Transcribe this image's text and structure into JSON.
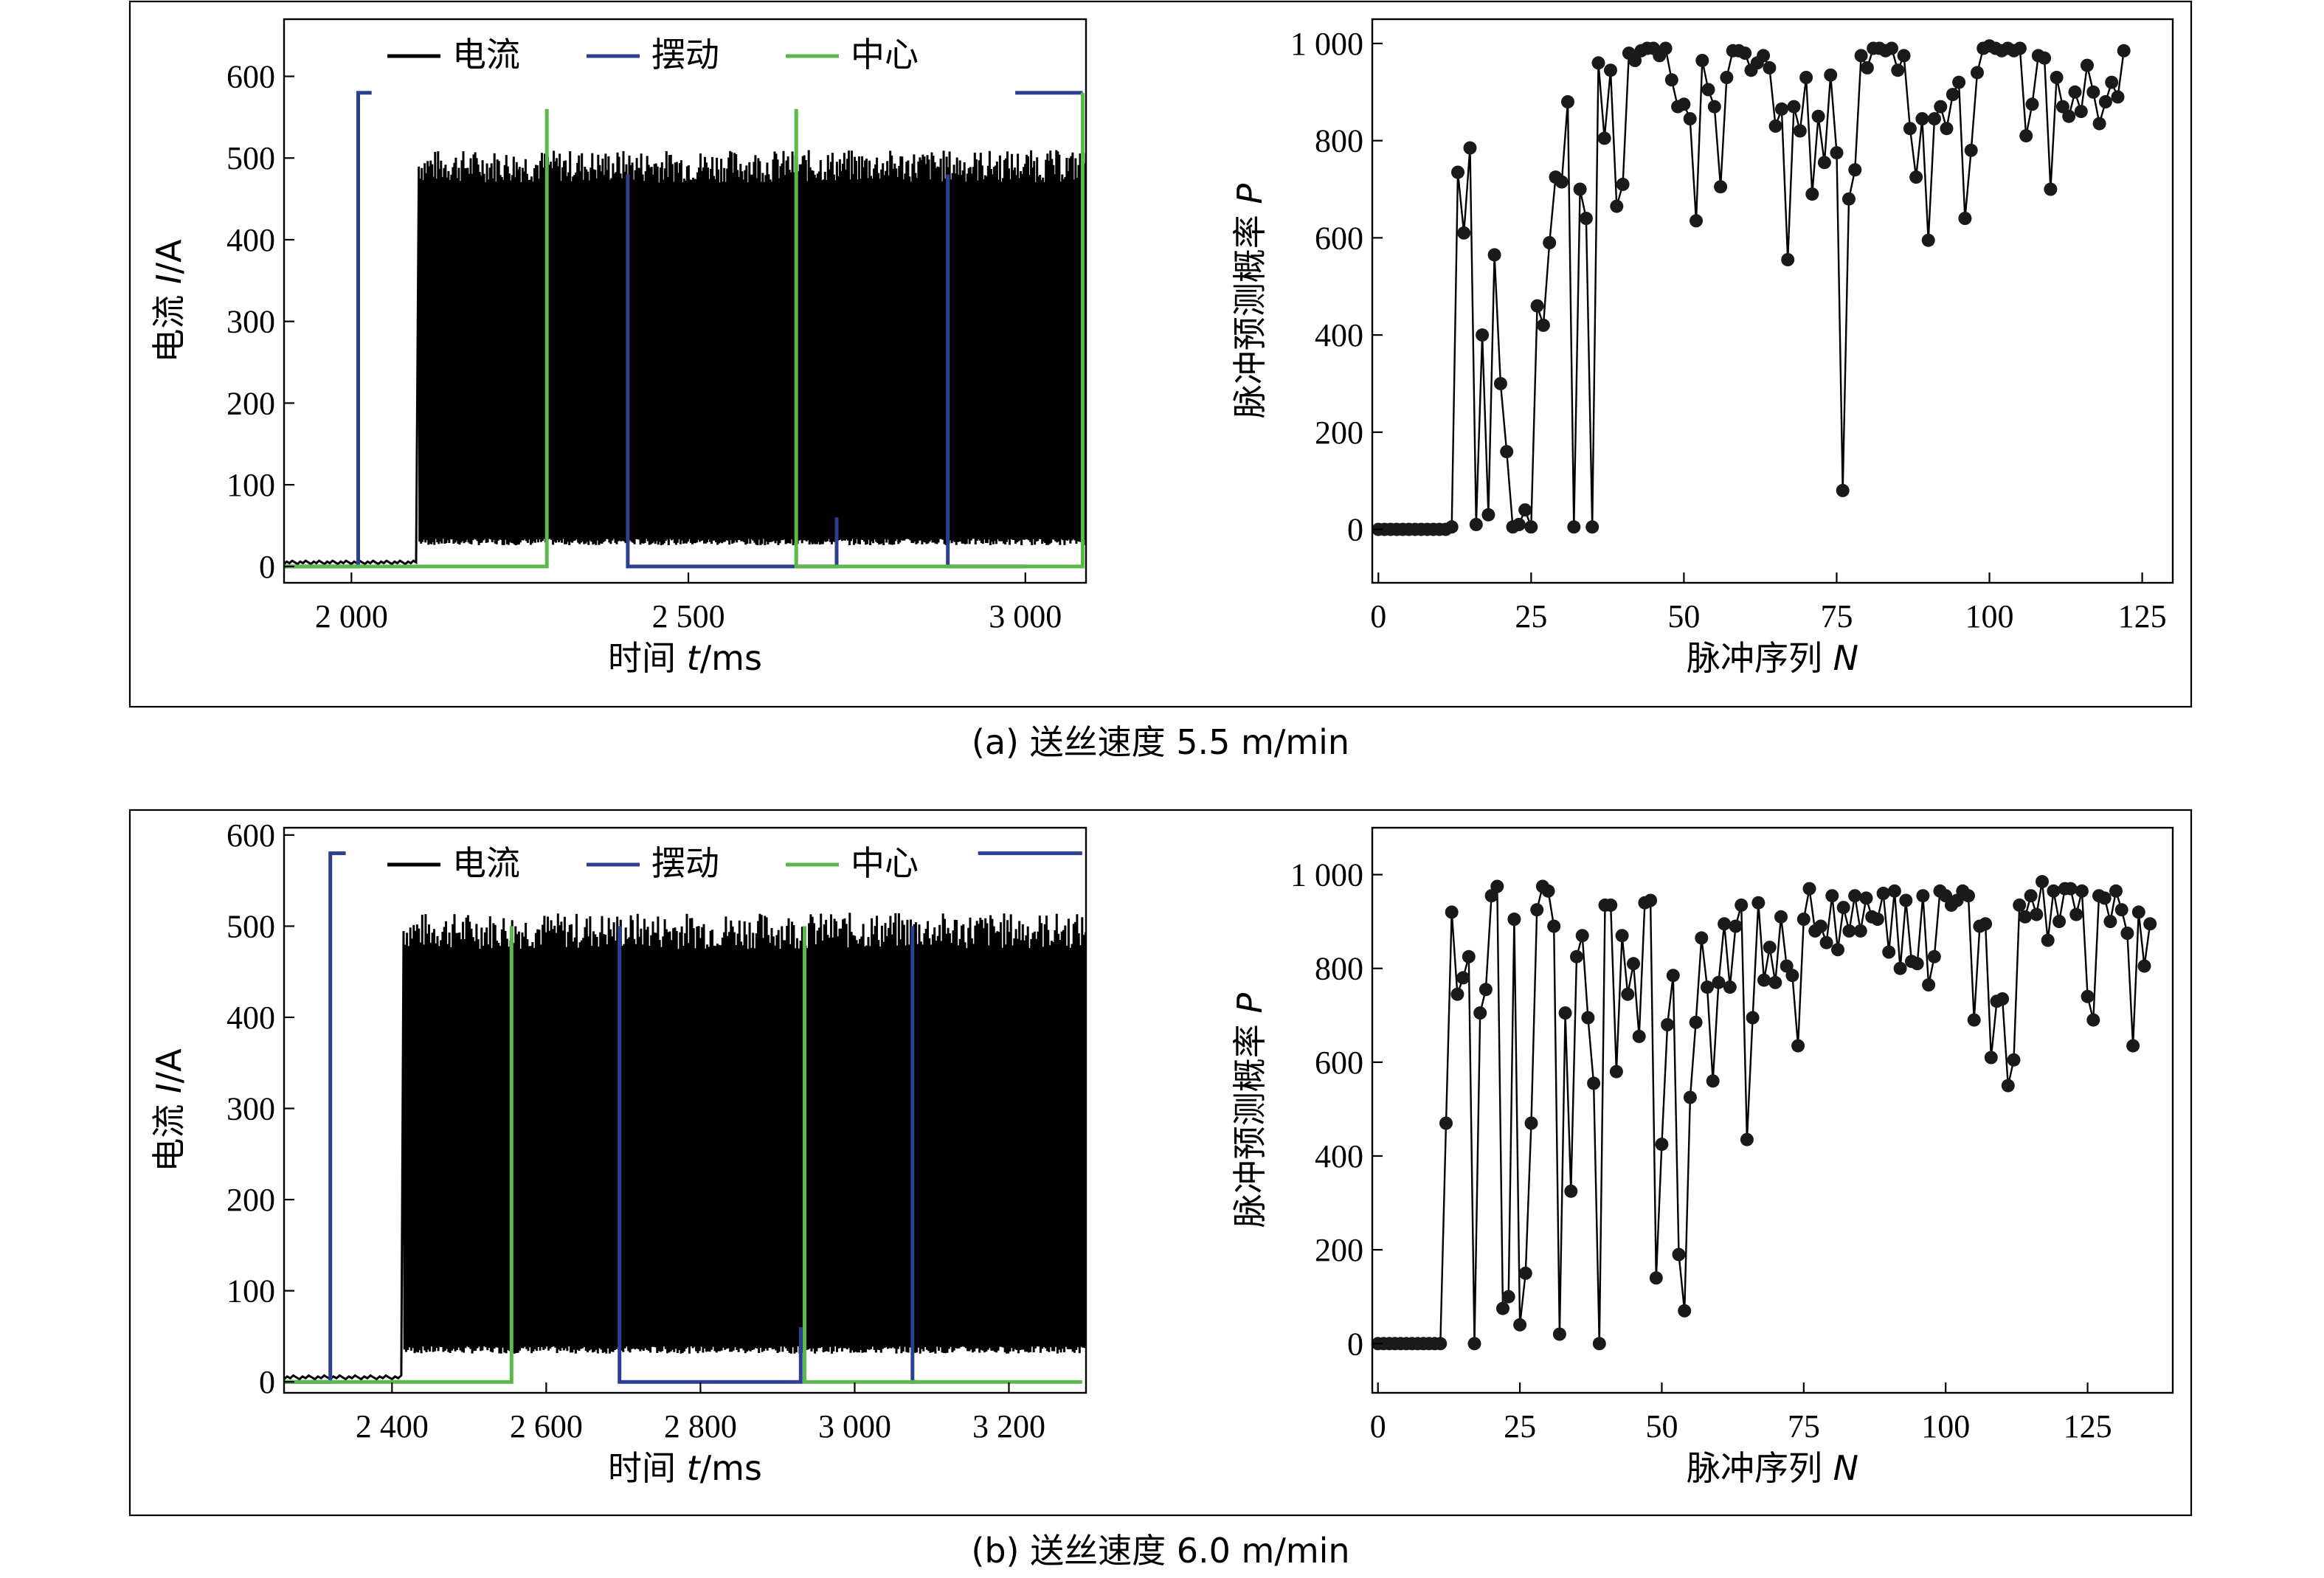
{
  "colors": {
    "current": "#000000",
    "swing": "#2e3f93",
    "center": "#5bb84a",
    "marker": "#1a1a1a"
  },
  "panels": [
    {
      "caption": "(a) 送丝速度 5.5 m/min",
      "left_chart": {
        "type": "line",
        "xlabel_prefix": "时间 ",
        "xlabel_var": "t",
        "xlabel_suffix": "/ms",
        "ylabel_prefix": "电流 ",
        "ylabel_var": "I",
        "ylabel_suffix": "/A",
        "xlim": [
          1900,
          3090
        ],
        "ylim": [
          -20,
          670
        ],
        "xticks": [
          2000,
          2500,
          3000
        ],
        "xtick_labels": [
          "2 000",
          "2 500",
          "3 000"
        ],
        "yticks": [
          0,
          100,
          200,
          300,
          400,
          500,
          600
        ],
        "ytick_labels": [
          "0",
          "100",
          "200",
          "300",
          "400",
          "500",
          "600"
        ],
        "legend": [
          "电流",
          "摆动",
          "中心"
        ],
        "current_start": 2100,
        "current_end": 3090,
        "current_low": 30,
        "current_high": 490,
        "swing_segments": [
          [
            [
              1900,
              0
            ],
            [
              2010,
              0
            ],
            [
              2010,
              580
            ],
            [
              2030,
              580
            ]
          ],
          [
            [
              2410,
              480
            ],
            [
              2410,
              0
            ],
            [
              2720,
              0
            ],
            [
              2720,
              60
            ]
          ],
          [
            [
              2885,
              480
            ],
            [
              2885,
              0
            ],
            [
              3000,
              0
            ]
          ],
          [
            [
              2985,
              580
            ],
            [
              3085,
              580
            ]
          ]
        ],
        "center_segments": [
          [
            [
              1900,
              0
            ],
            [
              2290,
              0
            ],
            [
              2290,
              560
            ]
          ],
          [
            [
              2660,
              560
            ],
            [
              2660,
              0
            ],
            [
              3085,
              0
            ],
            [
              3085,
              580
            ]
          ]
        ]
      },
      "right_chart": {
        "type": "line",
        "xlabel_prefix": "脉冲序列 ",
        "xlabel_var": "N",
        "ylabel_prefix": "脉冲预测概率 ",
        "ylabel_var": "P",
        "xlim": [
          -1,
          130
        ],
        "ylim": [
          -110,
          1050
        ],
        "xticks": [
          0,
          25,
          50,
          75,
          100,
          125
        ],
        "xtick_labels": [
          "0",
          "25",
          "50",
          "75",
          "100",
          "125"
        ],
        "yticks": [
          0,
          200,
          400,
          600,
          800,
          1000
        ],
        "ytick_labels": [
          "0",
          "200",
          "400",
          "600",
          "800",
          "1 000"
        ],
        "values": [
          0,
          0,
          0,
          0,
          0,
          0,
          0,
          0,
          0,
          0,
          0,
          0,
          5,
          735,
          610,
          785,
          10,
          400,
          30,
          565,
          300,
          160,
          5,
          10,
          40,
          5,
          460,
          420,
          590,
          725,
          715,
          880,
          5,
          700,
          640,
          5,
          960,
          805,
          945,
          665,
          710,
          980,
          965,
          985,
          990,
          990,
          975,
          990,
          925,
          870,
          875,
          845,
          635,
          965,
          905,
          870,
          705,
          930,
          985,
          985,
          980,
          945,
          960,
          975,
          950,
          830,
          865,
          555,
          870,
          820,
          930,
          690,
          850,
          755,
          935,
          775,
          80,
          680,
          740,
          975,
          950,
          990,
          990,
          985,
          990,
          945,
          975,
          825,
          725,
          845,
          595,
          845,
          870,
          825,
          895,
          920,
          640,
          780,
          940,
          990,
          995,
          990,
          985,
          990,
          985,
          990,
          810,
          875,
          975,
          970,
          700,
          930,
          870,
          850,
          900,
          860,
          955,
          900,
          835,
          880,
          920,
          890,
          985
        ],
        "xs_first": 0
      }
    },
    {
      "caption": "(b) 送丝速度 6.0 m/min",
      "left_chart": {
        "type": "line",
        "xlabel_prefix": "时间 ",
        "xlabel_var": "t",
        "xlabel_suffix": "/ms",
        "ylabel_prefix": "电流 ",
        "ylabel_var": "I",
        "ylabel_suffix": "/A",
        "xlim": [
          2260,
          3300
        ],
        "ylim": [
          -12,
          608
        ],
        "xticks": [
          2400,
          2600,
          2800,
          3000,
          3200
        ],
        "xtick_labels": [
          "2 400",
          "2 600",
          "2 800",
          "3 000",
          "3 200"
        ],
        "yticks": [
          0,
          100,
          200,
          300,
          400,
          500,
          600
        ],
        "ytick_labels": [
          "0",
          "100",
          "200",
          "300",
          "400",
          "500",
          "600"
        ],
        "legend": [
          "电流",
          "摆动",
          "中心"
        ],
        "current_start": 2415,
        "current_end": 3300,
        "current_low": 35,
        "current_high": 495,
        "swing_segments": [
          [
            [
              2260,
              0
            ],
            [
              2320,
              0
            ],
            [
              2320,
              580
            ],
            [
              2340,
              580
            ]
          ],
          [
            [
              2695,
              500
            ],
            [
              2695,
              0
            ],
            [
              2930,
              0
            ],
            [
              2930,
              60
            ]
          ],
          [
            [
              3075,
              500
            ],
            [
              3075,
              0
            ],
            [
              3080,
              0
            ]
          ],
          [
            [
              3160,
              580
            ],
            [
              3295,
              580
            ]
          ]
        ],
        "center_segments": [
          [
            [
              2260,
              0
            ],
            [
              2555,
              0
            ],
            [
              2555,
              500
            ]
          ],
          [
            [
              2935,
              500
            ],
            [
              2935,
              0
            ],
            [
              3295,
              0
            ]
          ]
        ]
      },
      "right_chart": {
        "type": "line",
        "xlabel_prefix": "脉冲序列 ",
        "xlabel_var": "N",
        "ylabel_prefix": "脉冲预测概率 ",
        "ylabel_var": "P",
        "xlim": [
          -1,
          140
        ],
        "ylim": [
          -105,
          1100
        ],
        "xticks": [
          0,
          25,
          50,
          75,
          100,
          125
        ],
        "xtick_labels": [
          "0",
          "25",
          "50",
          "75",
          "100",
          "125"
        ],
        "yticks": [
          0,
          200,
          400,
          600,
          800,
          1000
        ],
        "ytick_labels": [
          "0",
          "200",
          "400",
          "600",
          "800",
          "1 000"
        ],
        "values": [
          0,
          0,
          0,
          0,
          0,
          0,
          0,
          0,
          0,
          0,
          0,
          0,
          470,
          920,
          745,
          780,
          825,
          0,
          705,
          755,
          955,
          975,
          75,
          100,
          905,
          40,
          150,
          470,
          925,
          975,
          965,
          890,
          20,
          705,
          325,
          825,
          870,
          695,
          555,
          0,
          935,
          935,
          580,
          870,
          745,
          810,
          655,
          940,
          945,
          140,
          425,
          680,
          785,
          190,
          70,
          525,
          685,
          865,
          760,
          560,
          770,
          895,
          760,
          890,
          935,
          435,
          695,
          940,
          775,
          845,
          770,
          910,
          805,
          785,
          635,
          905,
          970,
          880,
          890,
          855,
          955,
          840,
          930,
          880,
          955,
          880,
          950,
          910,
          905,
          960,
          835,
          965,
          800,
          945,
          815,
          810,
          955,
          765,
          825,
          965,
          955,
          935,
          945,
          965,
          955,
          690,
          890,
          895,
          610,
          730,
          735,
          550,
          605,
          935,
          910,
          955,
          915,
          985,
          860,
          965,
          900,
          970,
          970,
          915,
          965,
          740,
          690,
          955,
          950,
          900,
          965,
          925,
          875,
          635,
          920,
          805,
          895
        ],
        "xs_first": 0
      }
    }
  ]
}
